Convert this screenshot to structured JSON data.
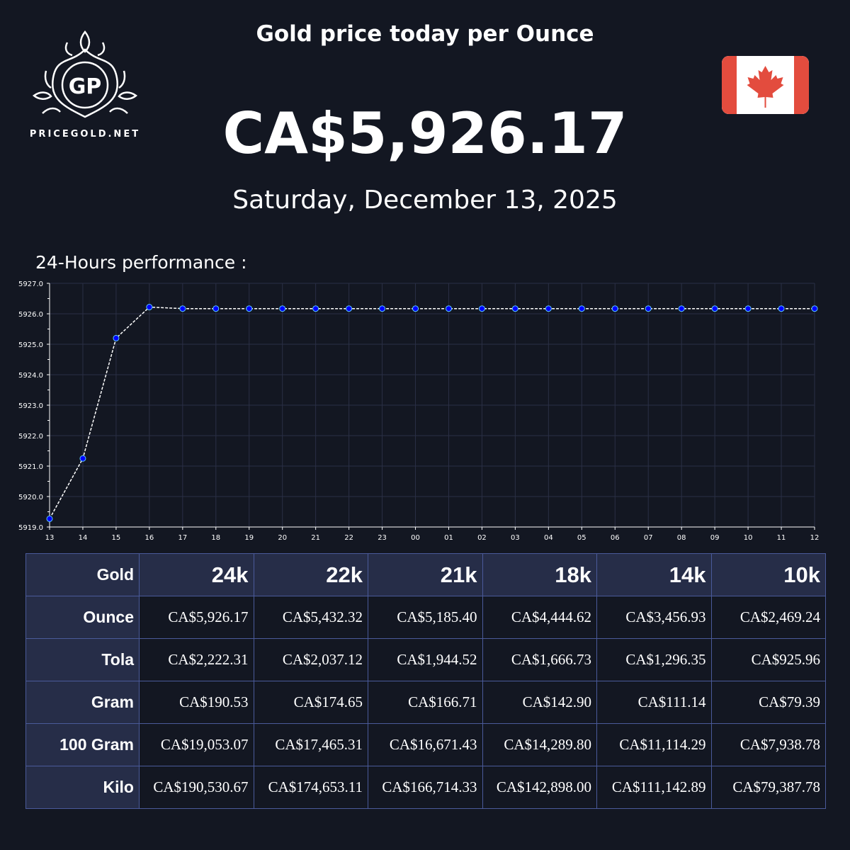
{
  "header": {
    "title": "Gold price today per Ounce",
    "price": "CA$5,926.17",
    "date": "Saturday, December 13, 2025",
    "logo_text": "PRICEGOLD.NET",
    "logo_initials": "GP",
    "flag": "canada-flag-icon"
  },
  "performance_label": "24-Hours performance :",
  "chart_data": {
    "type": "line",
    "title": "24-Hours performance",
    "x": [
      "13",
      "14",
      "15",
      "16",
      "17",
      "18",
      "19",
      "20",
      "21",
      "22",
      "23",
      "00",
      "01",
      "02",
      "03",
      "04",
      "05",
      "06",
      "07",
      "08",
      "09",
      "10",
      "11",
      "12"
    ],
    "values": [
      5919.27,
      5921.25,
      5925.2,
      5926.22,
      5926.17,
      5926.17,
      5926.17,
      5926.17,
      5926.17,
      5926.17,
      5926.17,
      5926.17,
      5926.17,
      5926.17,
      5926.17,
      5926.17,
      5926.17,
      5926.17,
      5926.17,
      5926.17,
      5926.17,
      5926.17,
      5926.17,
      5926.17
    ],
    "ylim": [
      5919,
      5927
    ],
    "yticks": [
      "5919.0",
      "5920.0",
      "5921.0",
      "5922.0",
      "5923.0",
      "5924.0",
      "5925.0",
      "5926.0",
      "5927.0"
    ],
    "grid": true,
    "line_color": "#ffffff",
    "marker_color": "#0000ff"
  },
  "table": {
    "corner": "Gold",
    "columns": [
      "24k",
      "22k",
      "21k",
      "18k",
      "14k",
      "10k"
    ],
    "rows": [
      {
        "label": "Ounce",
        "values": [
          "CA$5,926.17",
          "CA$5,432.32",
          "CA$5,185.40",
          "CA$4,444.62",
          "CA$3,456.93",
          "CA$2,469.24"
        ]
      },
      {
        "label": "Tola",
        "values": [
          "CA$2,222.31",
          "CA$2,037.12",
          "CA$1,944.52",
          "CA$1,666.73",
          "CA$1,296.35",
          "CA$925.96"
        ]
      },
      {
        "label": "Gram",
        "values": [
          "CA$190.53",
          "CA$174.65",
          "CA$166.71",
          "CA$142.90",
          "CA$111.14",
          "CA$79.39"
        ]
      },
      {
        "label": "100 Gram",
        "values": [
          "CA$19,053.07",
          "CA$17,465.31",
          "CA$16,671.43",
          "CA$14,289.80",
          "CA$11,114.29",
          "CA$7,938.78"
        ]
      },
      {
        "label": "Kilo",
        "values": [
          "CA$190,530.67",
          "CA$174,653.11",
          "CA$166,714.33",
          "CA$142,898.00",
          "CA$111,142.89",
          "CA$79,387.78"
        ]
      }
    ]
  }
}
